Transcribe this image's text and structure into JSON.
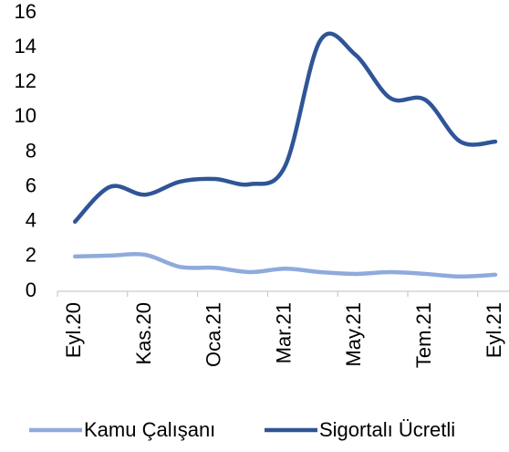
{
  "chart_data": {
    "type": "line",
    "categories": [
      "Eyl.20",
      null,
      "Kas.20",
      null,
      "Oca.21",
      null,
      "Mar.21",
      null,
      "May.21",
      null,
      "Tem.21",
      null,
      "Eyl.21"
    ],
    "series": [
      {
        "name": "Kamu Çalışanı",
        "color": "#8faadc",
        "values": [
          2.0,
          2.05,
          2.1,
          1.4,
          1.35,
          1.1,
          1.3,
          1.1,
          1.0,
          1.1,
          1.0,
          0.85,
          0.95
        ]
      },
      {
        "name": "Sigortalı Ücretli",
        "color": "#2f5597",
        "values": [
          4.0,
          6.0,
          5.55,
          6.3,
          6.45,
          6.15,
          7.2,
          14.4,
          13.6,
          11.1,
          11.0,
          8.6,
          8.6
        ]
      }
    ],
    "ylim": [
      0,
      16
    ],
    "yticks": [
      0,
      2,
      4,
      6,
      8,
      10,
      12,
      14,
      16
    ],
    "grid": false,
    "legend": "bottom"
  }
}
